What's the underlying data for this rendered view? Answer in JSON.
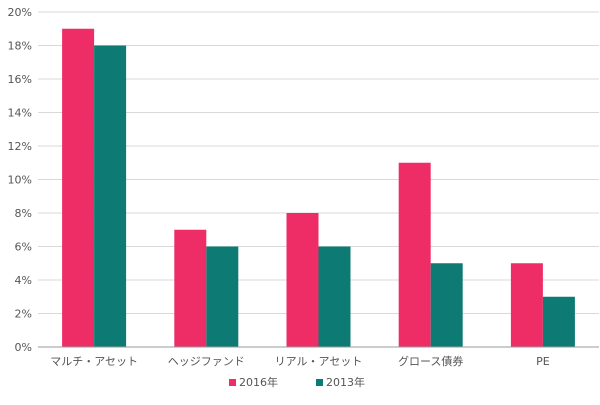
{
  "chart_data": {
    "type": "bar",
    "categories": [
      "マルチ・アセット",
      "ヘッジファンド",
      "リアル・アセット",
      "グロース債券",
      "PE"
    ],
    "series": [
      {
        "name": "2016年",
        "values": [
          19,
          7,
          8,
          11,
          5
        ],
        "color": "#ee2d67"
      },
      {
        "name": "2013年",
        "values": [
          18,
          6,
          6,
          5,
          3
        ],
        "color": "#0d7b74"
      }
    ],
    "ylim": [
      0,
      20
    ],
    "yticks": [
      "0%",
      "2%",
      "4%",
      "6%",
      "8%",
      "10%",
      "12%",
      "14%",
      "16%",
      "18%",
      "20%"
    ],
    "grid": true,
    "legend_position": "bottom-center"
  }
}
